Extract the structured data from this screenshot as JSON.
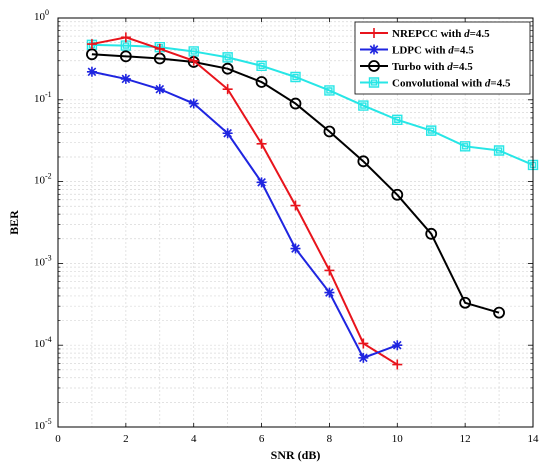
{
  "chart_data": {
    "type": "line",
    "xlabel": "SNR (dB)",
    "ylabel": "BER",
    "y_scale": "log",
    "xlim": [
      0,
      14
    ],
    "ylim": [
      1e-05,
      1
    ],
    "x_ticks": [
      "0",
      "2",
      "4",
      "6",
      "8",
      "10",
      "12",
      "14"
    ],
    "grid": true,
    "legend_position": "top-right",
    "series": [
      {
        "legend_prefix": "NREPCC with ",
        "legend_var": "d",
        "legend_suffix": "=4.5",
        "color": "#e8141c",
        "marker": "plus",
        "x": [
          1,
          2,
          3,
          4,
          5,
          6,
          7,
          8,
          9,
          10
        ],
        "y": [
          0.48,
          0.58,
          0.42,
          0.3,
          0.135,
          0.029,
          0.0051,
          0.00082,
          0.000105,
          5.8e-05
        ]
      },
      {
        "legend_prefix": "LDPC with ",
        "legend_var": "d",
        "legend_suffix": "=4.5",
        "color": "#1f25e0",
        "marker": "asterisk",
        "x": [
          1,
          2,
          3,
          4,
          5,
          6,
          7,
          8,
          9,
          10
        ],
        "y": [
          0.22,
          0.18,
          0.135,
          0.09,
          0.039,
          0.0098,
          0.00152,
          0.00044,
          7e-05,
          0.0001
        ]
      },
      {
        "legend_prefix": "Turbo with ",
        "legend_var": "d",
        "legend_suffix": "=4.5",
        "color": "#000000",
        "marker": "circle",
        "x": [
          1,
          2,
          3,
          4,
          5,
          6,
          7,
          8,
          9,
          10,
          11,
          12,
          13
        ],
        "y": [
          0.36,
          0.34,
          0.32,
          0.29,
          0.24,
          0.165,
          0.09,
          0.041,
          0.0177,
          0.0069,
          0.0023,
          0.00033,
          0.00025
        ]
      },
      {
        "legend_prefix": "Convolutional with ",
        "legend_var": "d",
        "legend_suffix": "=4.5",
        "color": "#27e6e6",
        "marker": "square",
        "x": [
          1,
          2,
          3,
          4,
          5,
          6,
          7,
          8,
          9,
          10,
          11,
          12,
          13,
          14
        ],
        "y": [
          0.47,
          0.46,
          0.44,
          0.39,
          0.33,
          0.26,
          0.19,
          0.13,
          0.085,
          0.057,
          0.042,
          0.027,
          0.024,
          0.016
        ]
      }
    ]
  }
}
